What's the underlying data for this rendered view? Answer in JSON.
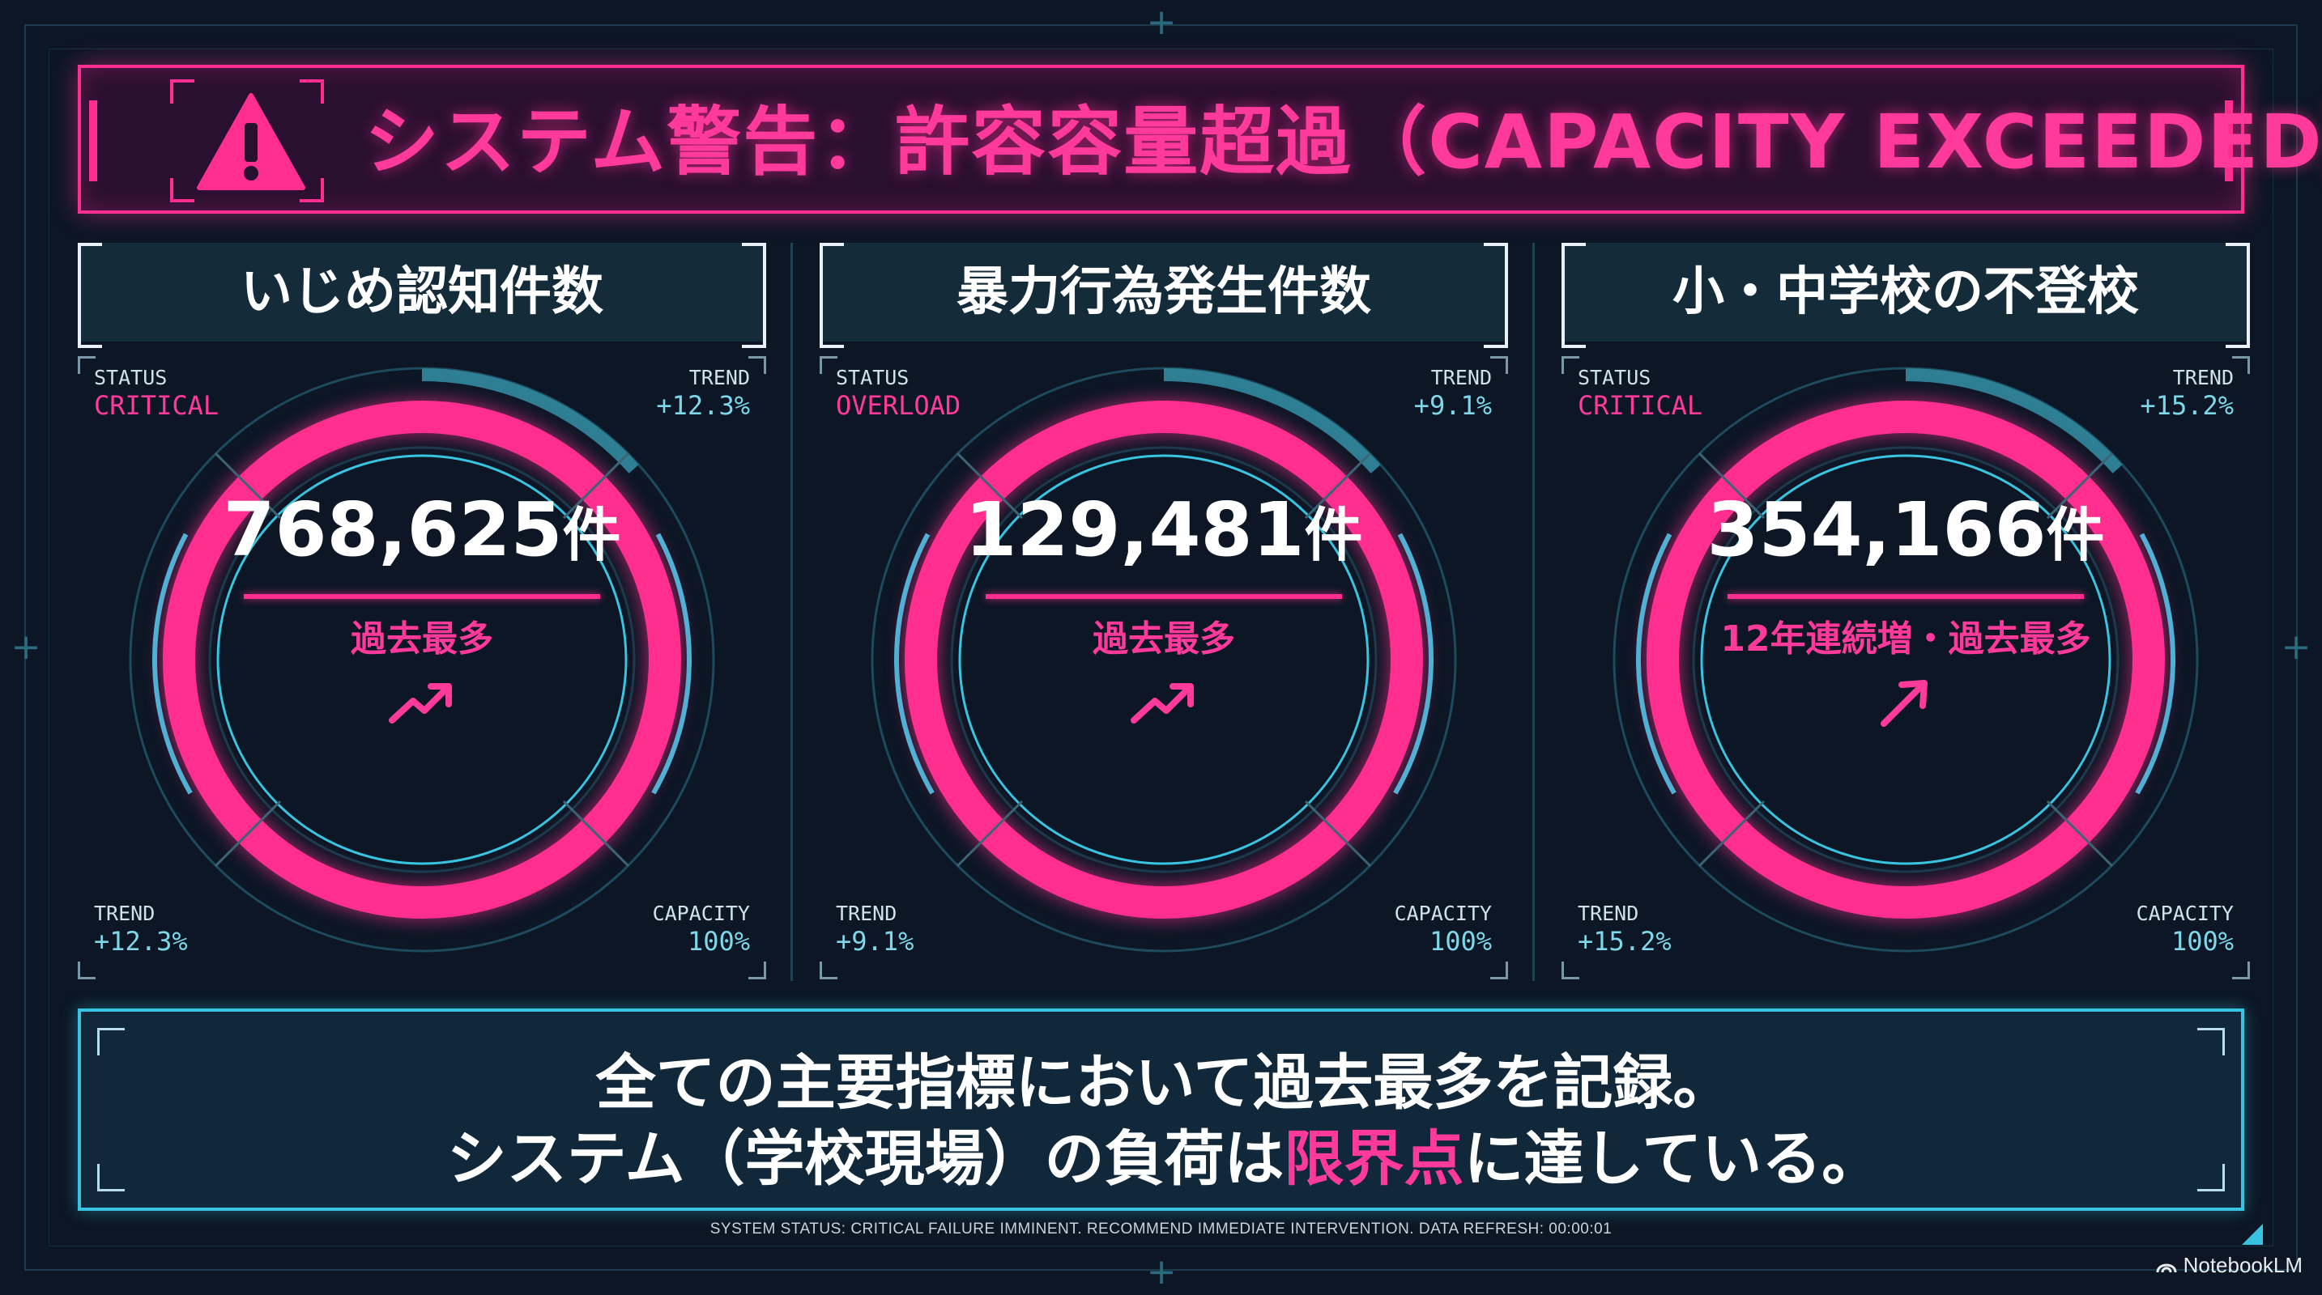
{
  "header": {
    "title": "システム警告：許容容量超過（CAPACITY EXCEEDED）",
    "icon": "warning-triangle-icon",
    "accent_color": "#ff2e8f"
  },
  "panels": [
    {
      "title": "いじめ認知件数",
      "status_key": "STATUS",
      "status_value": "CRITICAL",
      "trend_key": "TREND",
      "trend_value": "+12.3%",
      "trend2_key": "TREND",
      "trend2_value": "+12.3%",
      "capacity_key": "CAPACITY",
      "capacity_value": "100%",
      "value": "768,625",
      "unit": "件",
      "note": "過去最多",
      "arrow": "trend-up-icon"
    },
    {
      "title": "暴力行為発生件数",
      "status_key": "STATUS",
      "status_value": "OVERLOAD",
      "trend_key": "TREND",
      "trend_value": "+9.1%",
      "trend2_key": "TREND",
      "trend2_value": "+9.1%",
      "capacity_key": "CAPACITY",
      "capacity_value": "100%",
      "value": "129,481",
      "unit": "件",
      "note": "過去最多",
      "arrow": "trend-up-icon"
    },
    {
      "title": "小・中学校の不登校",
      "status_key": "STATUS",
      "status_value": "CRITICAL",
      "trend_key": "TREND",
      "trend_value": "+15.2%",
      "trend2_key": "TREND",
      "trend2_value": "+15.2%",
      "capacity_key": "CAPACITY",
      "capacity_value": "100%",
      "value": "354,166",
      "unit": "件",
      "note": "12年連続増・過去最多",
      "arrow": "arrow-up-right-icon"
    }
  ],
  "summary": {
    "line1": "全ての主要指標において過去最多を記録。",
    "line2_before": "システム（学校現場）の負荷は",
    "line2_highlight": "限界点",
    "line2_after": "に達している。"
  },
  "footer": {
    "status_text": "SYSTEM STATUS: CRITICAL FAILURE IMMINENT. RECOMMEND IMMEDIATE INTERVENTION.  DATA REFRESH: 00:00:01"
  },
  "brand": {
    "name": "NotebookLM"
  },
  "colors": {
    "pink": "#ff2e8f",
    "cyan": "#38c4e0",
    "background": "#0c1624"
  }
}
